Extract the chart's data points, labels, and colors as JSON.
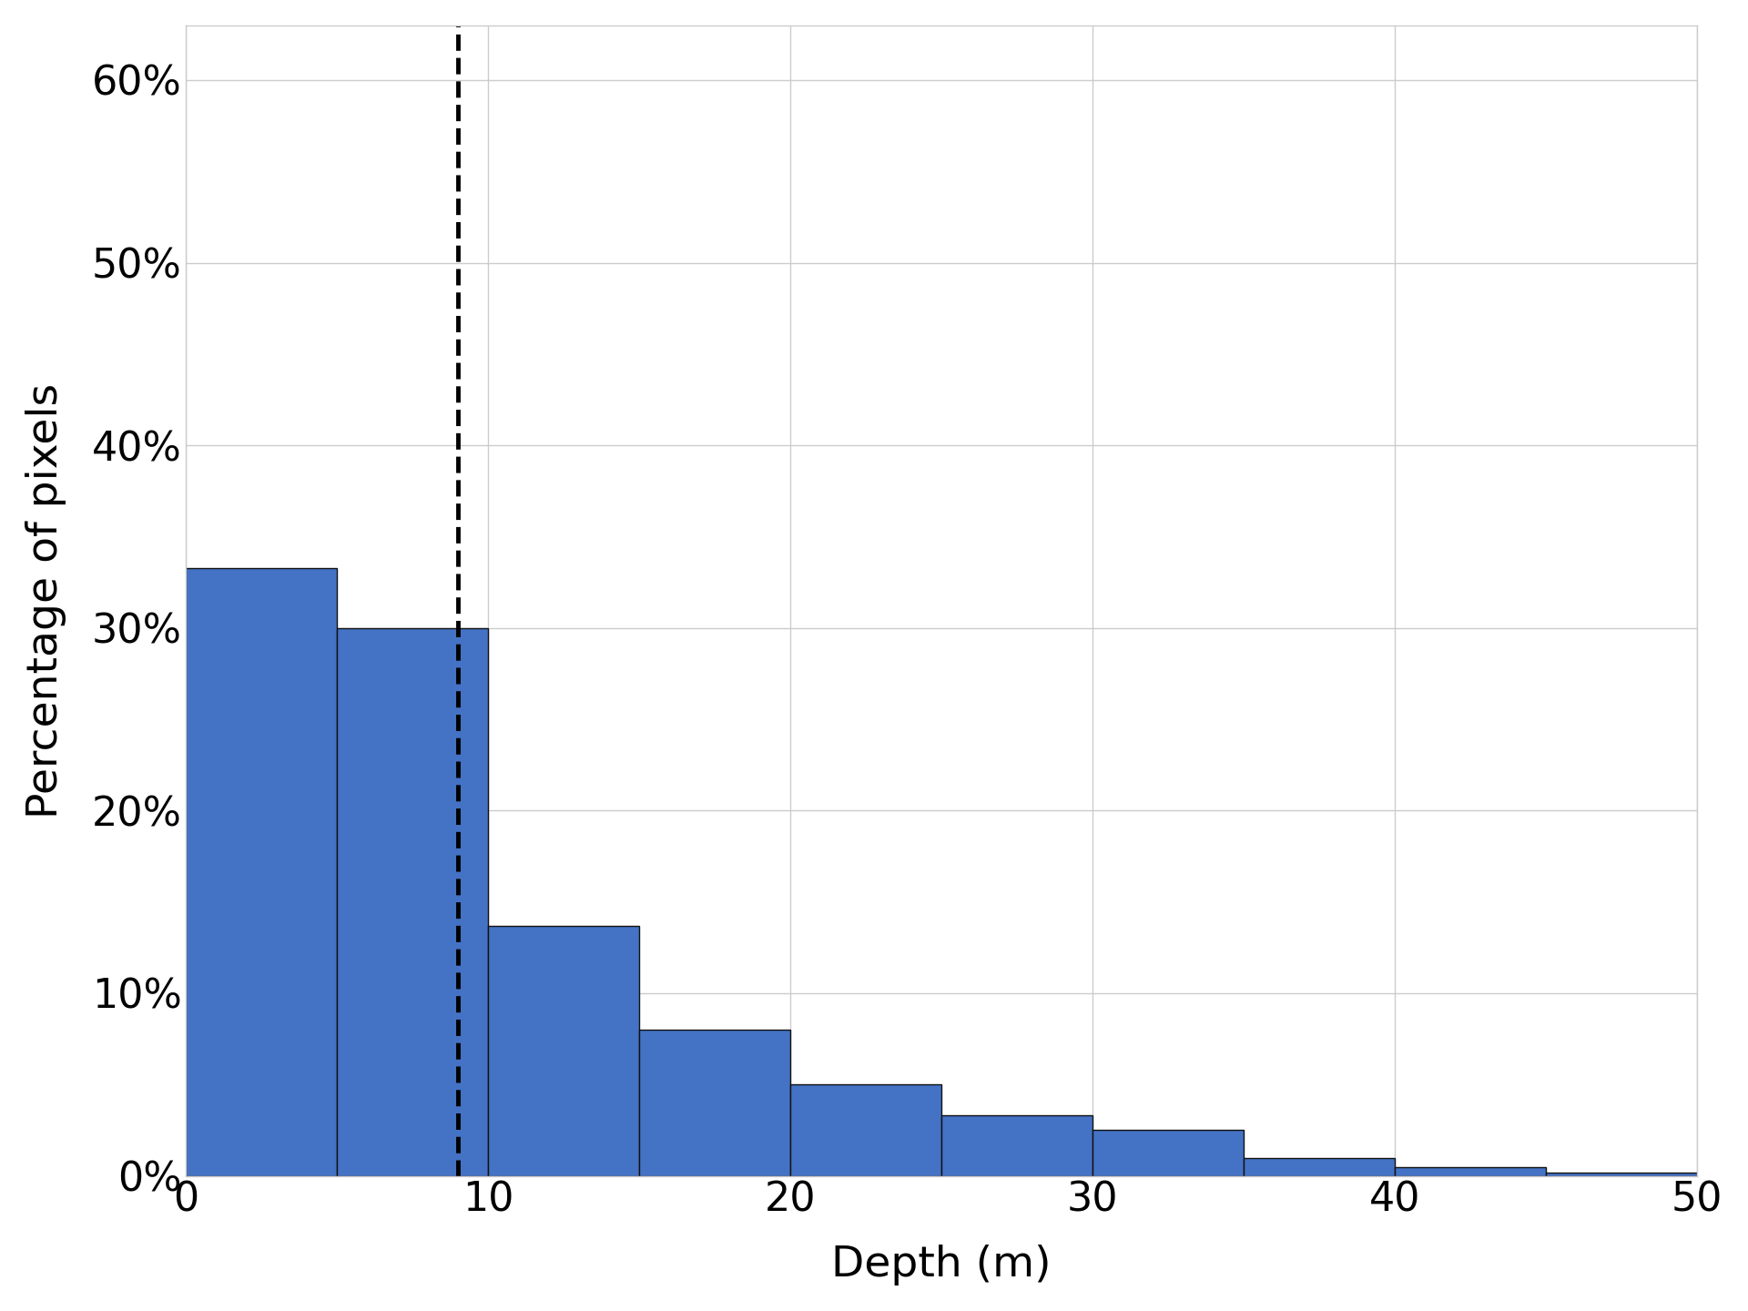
{
  "title": "",
  "xlabel": "Depth (m)",
  "ylabel": "Percentage of pixels",
  "bar_color": "#4472C4",
  "bar_edgecolor": "#111111",
  "background_color": "#ffffff",
  "grid_color": "#cccccc",
  "dashed_line_x": 9.0,
  "xlim": [
    0,
    50
  ],
  "ylim": [
    0,
    0.63
  ],
  "yticks": [
    0.0,
    0.1,
    0.2,
    0.3,
    0.4,
    0.5,
    0.6
  ],
  "xticks": [
    0,
    10,
    20,
    30,
    40,
    50
  ],
  "bin_edges": [
    0,
    5,
    10,
    15,
    20,
    25,
    30,
    35,
    40,
    45,
    50
  ],
  "bar_heights": [
    0.333,
    0.3,
    0.137,
    0.08,
    0.05,
    0.033,
    0.025,
    0.01,
    0.005,
    0.002
  ],
  "title_fontsize": 32,
  "label_fontsize": 34,
  "tick_fontsize": 32
}
